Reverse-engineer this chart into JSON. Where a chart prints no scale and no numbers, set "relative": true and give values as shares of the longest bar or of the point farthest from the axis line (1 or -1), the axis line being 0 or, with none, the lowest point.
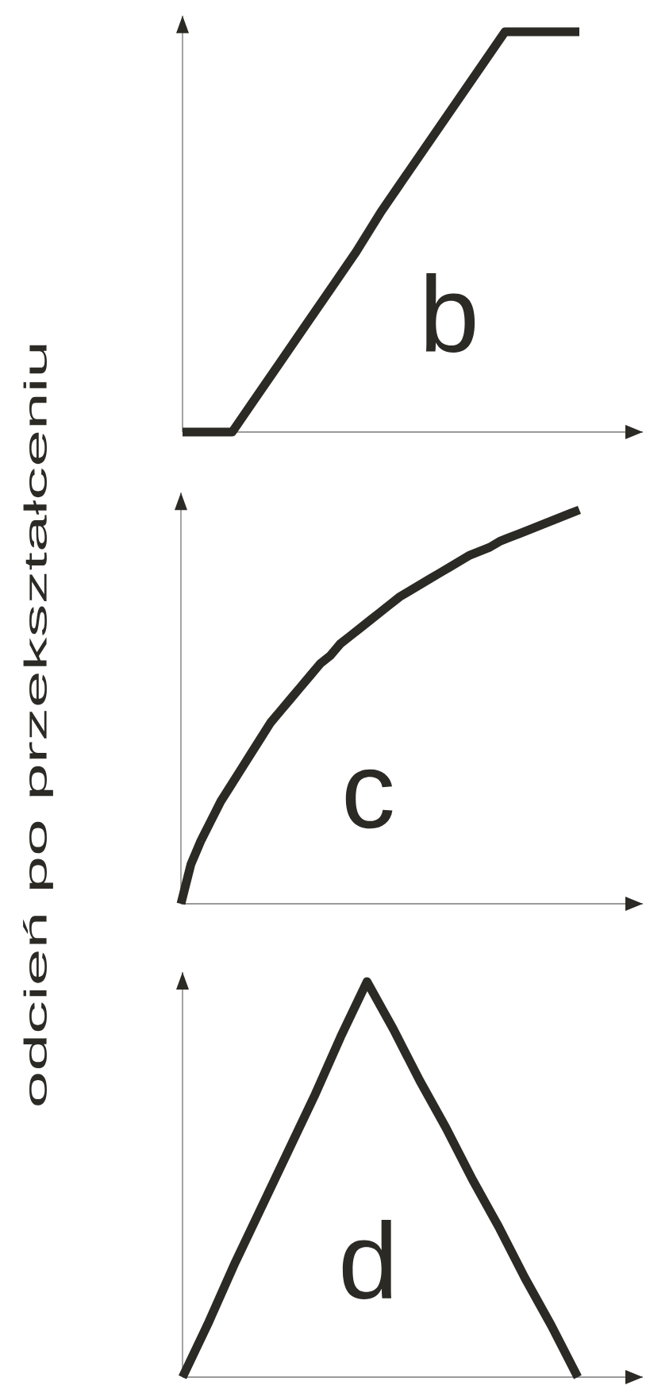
{
  "chart_data": [
    {
      "type": "line",
      "relative": true,
      "categories": [
        null,
        null,
        null,
        null,
        null,
        null,
        null,
        null,
        null,
        null,
        null,
        null,
        null,
        null,
        null,
        null,
        null
      ],
      "values": [
        0,
        0,
        0,
        0.09,
        0.18,
        0.27,
        0.36,
        0.45,
        0.55,
        0.64,
        0.73,
        0.82,
        0.91,
        1,
        1,
        1,
        1
      ],
      "color": "#2b2a25",
      "annotations": [
        "b"
      ]
    },
    {
      "type": "line",
      "relative": true,
      "ylabel": "odcień po przekształceniu",
      "categories": [
        null,
        null,
        null,
        null,
        null,
        null,
        null,
        null,
        null,
        null,
        null,
        null,
        null,
        null,
        null,
        null,
        null,
        null,
        null,
        null,
        null,
        null,
        null,
        null,
        null,
        null,
        null,
        null,
        null,
        null,
        null,
        null,
        null,
        null,
        null,
        null,
        null,
        null,
        null,
        null,
        null
      ],
      "values": [
        0,
        0.1,
        0.16,
        0.21,
        0.26,
        0.3,
        0.34,
        0.38,
        0.42,
        0.46,
        0.49,
        0.52,
        0.55,
        0.58,
        0.61,
        0.63,
        0.66,
        0.68,
        0.7,
        0.72,
        0.74,
        0.76,
        0.78,
        0.795,
        0.81,
        0.825,
        0.84,
        0.855,
        0.87,
        0.885,
        0.895,
        0.905,
        0.92,
        0.93,
        0.94,
        0.95,
        0.96,
        0.97,
        0.98,
        0.99,
        1
      ],
      "color": "#2b2a25",
      "annotations": [
        "c"
      ]
    },
    {
      "type": "line",
      "relative": true,
      "categories": [
        null,
        null,
        null,
        null,
        null,
        null,
        null,
        null,
        null,
        null,
        null,
        null,
        null,
        null,
        null,
        null
      ],
      "values": [
        0,
        0.14,
        0.29,
        0.43,
        0.57,
        0.71,
        0.86,
        1,
        0.88,
        0.75,
        0.63,
        0.5,
        0.38,
        0.25,
        0.13,
        0
      ],
      "color": "#2b2a25",
      "annotations": [
        "d"
      ]
    }
  ]
}
